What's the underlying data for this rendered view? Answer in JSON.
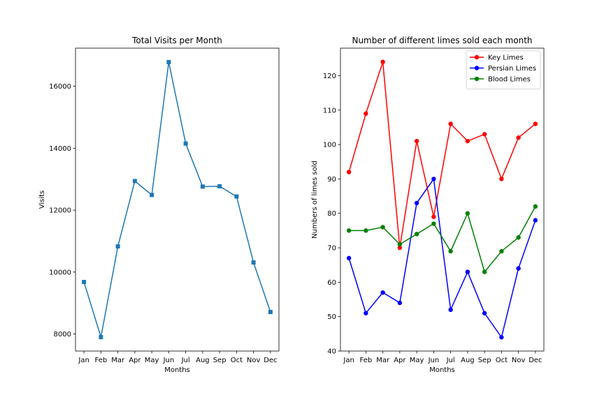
{
  "chart_data": [
    {
      "type": "line",
      "title": "Total Visits per Month",
      "xlabel": "Months",
      "ylabel": "Visits",
      "categories": [
        "Jan",
        "Feb",
        "Mar",
        "Apr",
        "May",
        "Jun",
        "Jul",
        "Aug",
        "Sep",
        "Oct",
        "Nov",
        "Dec"
      ],
      "series": [
        {
          "values": [
            9680,
            7900,
            10830,
            12940,
            12490,
            16780,
            14150,
            12760,
            12770,
            12440,
            10310,
            8710
          ],
          "color": "#1f77b4",
          "marker": "square"
        }
      ],
      "ylim": [
        7450,
        17230
      ],
      "yticks": [
        8000,
        10000,
        12000,
        14000,
        16000
      ],
      "grid": false
    },
    {
      "type": "line",
      "title": "Number of different limes sold each month",
      "xlabel": "Months",
      "ylabel": "Numbers of limes sold",
      "categories": [
        "Jan",
        "Feb",
        "Mar",
        "Apr",
        "May",
        "Jun",
        "Jul",
        "Aug",
        "Sep",
        "Oct",
        "Nov",
        "Dec"
      ],
      "series": [
        {
          "name": "Key Limes",
          "values": [
            92,
            109,
            124,
            70,
            101,
            79,
            106,
            101,
            103,
            90,
            102,
            106
          ],
          "color": "#ff0000",
          "marker": "circle"
        },
        {
          "name": "Persian Limes",
          "values": [
            67,
            51,
            57,
            54,
            83,
            90,
            52,
            63,
            51,
            44,
            64,
            78
          ],
          "color": "#0000ff",
          "marker": "circle"
        },
        {
          "name": "Blood Limes",
          "values": [
            75,
            75,
            76,
            71,
            74,
            77,
            69,
            80,
            63,
            69,
            73,
            82
          ],
          "color": "#008000",
          "marker": "circle"
        }
      ],
      "ylim": [
        40,
        128
      ],
      "yticks": [
        40,
        50,
        60,
        70,
        80,
        90,
        100,
        110,
        120
      ],
      "legend": "top-right",
      "grid": false
    }
  ]
}
